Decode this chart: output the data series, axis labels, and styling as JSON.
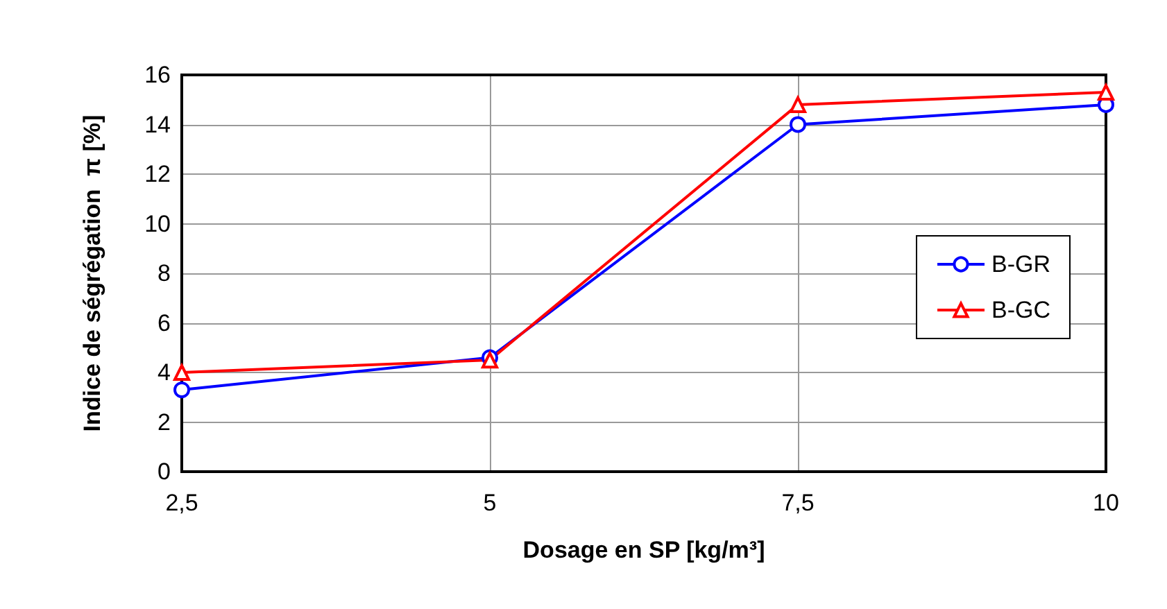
{
  "chart_data": {
    "type": "line",
    "xlabel": "Dosage en SP [kg/m³]",
    "ylabel": "Indice de ségrégation  π [%]",
    "categories": [
      "2,5",
      "5",
      "7,5",
      "10"
    ],
    "series": [
      {
        "name": "B-GR",
        "color": "#0000ff",
        "marker": "circle",
        "values": [
          3.3,
          4.6,
          14.0,
          14.8
        ]
      },
      {
        "name": "B-GC",
        "color": "#ff0000",
        "marker": "triangle",
        "values": [
          4.0,
          4.5,
          14.8,
          15.3
        ]
      }
    ],
    "ylim": [
      0,
      16
    ],
    "yticks": [
      0,
      2,
      4,
      6,
      8,
      10,
      12,
      14,
      16
    ],
    "grid": true,
    "legend": "right",
    "line_style": "solid"
  }
}
